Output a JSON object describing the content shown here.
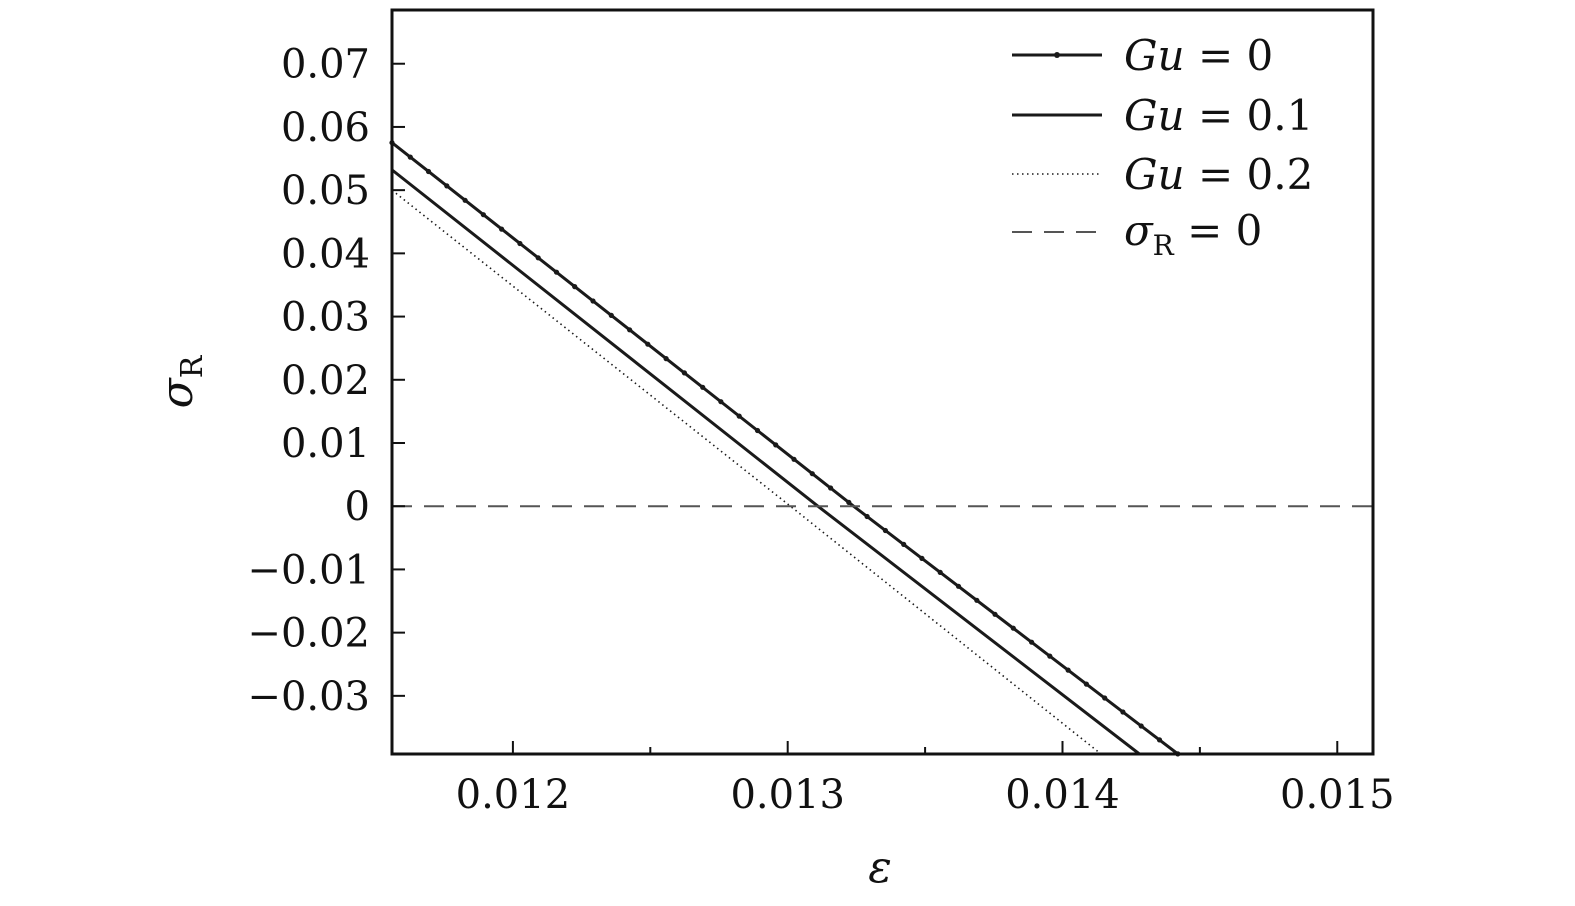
{
  "chart_data": {
    "type": "line",
    "xlabel": "ε",
    "ylabel": {
      "base": "σ",
      "sub": "R"
    },
    "xlim": [
      0.01156,
      0.01513
    ],
    "ylim": [
      -0.0392,
      0.0785
    ],
    "xticks": [
      0.012,
      0.013,
      0.014,
      0.015
    ],
    "xtick_labels": [
      "0.012",
      "0.013",
      "0.014",
      "0.015"
    ],
    "x_minor_ticks": [
      0.0125,
      0.0135,
      0.0145
    ],
    "yticks": [
      0.07,
      0.06,
      0.05,
      0.04,
      0.03,
      0.02,
      0.01,
      0,
      -0.01,
      -0.02,
      -0.03
    ],
    "ytick_labels": [
      "0.07",
      "0.06",
      "0.05",
      "0.04",
      "0.03",
      "0.02",
      "0.01",
      "0",
      "−0.01",
      "−0.02",
      "−0.03"
    ],
    "grid": false,
    "legend_position": "top-right",
    "series": [
      {
        "name": "Gu = 0",
        "name_parts": [
          "Gu",
          " = 0"
        ],
        "style": "solid-markers",
        "color": "#1a1a1a",
        "x": [
          0.01156,
          0.01324,
          0.01442
        ],
        "y": [
          0.0575,
          0.0,
          -0.0392
        ]
      },
      {
        "name": "Gu = 0.1",
        "name_parts": [
          "Gu",
          " = 0.1"
        ],
        "style": "solid",
        "color": "#1a1a1a",
        "x": [
          0.01156,
          0.01311,
          0.01428
        ],
        "y": [
          0.0532,
          0.0,
          -0.0392
        ]
      },
      {
        "name": "Gu = 0.2",
        "name_parts": [
          "Gu",
          " = 0.2"
        ],
        "style": "dotted",
        "color": "#1a1a1a",
        "x": [
          0.01156,
          0.01301,
          0.01414
        ],
        "y": [
          0.05,
          0.0,
          -0.0392
        ]
      },
      {
        "name": "σR = 0",
        "name_parts": [
          "σ",
          "R",
          " = 0"
        ],
        "style": "dashed",
        "color": "#555555",
        "x": [
          0.01156,
          0.01513
        ],
        "y": [
          0,
          0
        ]
      }
    ]
  }
}
